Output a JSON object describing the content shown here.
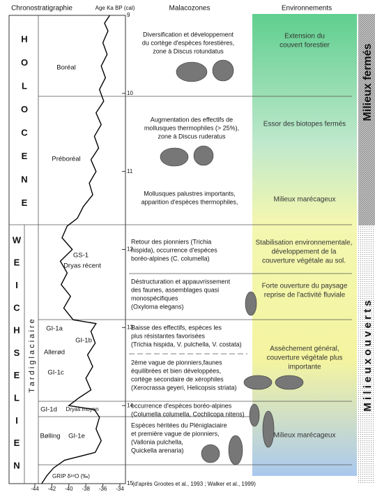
{
  "headers": [
    "Chronostratigraphie",
    "Malacozones",
    "Environnements"
  ],
  "age_axis": {
    "label": "Age Ka BP (cal)",
    "lim": [
      9,
      15
    ],
    "ticks": [
      9,
      10,
      11,
      12,
      13,
      14,
      15
    ]
  },
  "d18o_axis": {
    "label": "GRIP δ¹⁸O (‰)",
    "lim": [
      -44,
      -34
    ],
    "ticks": [
      -44,
      -42,
      -40,
      -38,
      -36,
      -34
    ]
  },
  "grip_curve": {
    "age": [
      9.0,
      9.1,
      9.2,
      9.35,
      9.5,
      9.65,
      9.8,
      9.95,
      10.1,
      10.25,
      10.4,
      10.55,
      10.7,
      10.85,
      11.0,
      11.15,
      11.3,
      11.45,
      11.6,
      11.7,
      11.85,
      12.0,
      12.15,
      12.3,
      12.45,
      12.6,
      12.75,
      12.9,
      12.95,
      13.05,
      13.2,
      13.35,
      13.5,
      13.65,
      13.8,
      13.9,
      14.0,
      14.05,
      14.15,
      14.3,
      14.45,
      14.6,
      14.7,
      14.8,
      14.9,
      15.0
    ],
    "d18o": [
      -35.2,
      -35.8,
      -35.4,
      -36.0,
      -35.5,
      -36.2,
      -35.7,
      -36.4,
      -35.9,
      -36.8,
      -36.2,
      -37.0,
      -36.5,
      -37.4,
      -36.8,
      -37.6,
      -37.2,
      -38.3,
      -39.0,
      -40.2,
      -40.8,
      -39.6,
      -41.0,
      -40.2,
      -40.9,
      -39.8,
      -40.6,
      -39.5,
      -36.8,
      -37.4,
      -36.9,
      -37.8,
      -37.2,
      -38.0,
      -37.4,
      -38.8,
      -40.0,
      -37.0,
      -36.4,
      -36.8,
      -36.2,
      -36.9,
      -40.5,
      -41.8,
      -42.6,
      -43.2
    ]
  },
  "holocene": {
    "letters": [
      "H",
      "O",
      "L",
      "O",
      "C",
      "E",
      "N",
      "E"
    ],
    "stages": [
      "Boréal",
      "Préboréal"
    ]
  },
  "weichselien": {
    "letters": [
      "W",
      "E",
      "I",
      "C",
      "H",
      "S",
      "E",
      "L",
      "I",
      "E",
      "N"
    ],
    "substage": "T a r d i g l a c i a i r e",
    "stages": [
      "GS-1",
      "Dryas récent",
      "GI-1a",
      "GI-1b",
      "Allerød",
      "GI-1c",
      "GI-1d",
      "Dryas moyen",
      "Bølling",
      "GI-1e"
    ]
  },
  "malacozones": [
    [
      "Diversification et développement",
      "du cortège d'espèces forestières,",
      "zone à Discus rotundatus"
    ],
    [
      "Augmentation des effectifs de",
      "mollusques thermophiles (> 25%),",
      "zone à Discus ruderatus"
    ],
    [
      "Mollusques palustres importants,",
      "apparition d'espèces thermophiles,"
    ],
    [
      "Retour des pionniers (Trichia",
      "hispida), occurrence d'espèces",
      "boréo-alpines (C. columella)"
    ],
    [
      "Déstructuration et appauvrissement",
      "des faunes, assemblages quasi",
      "monospécifiques",
      "(Oxyloma elegans)"
    ],
    [
      "Baisse des effectifs, espèces les",
      "plus résistantes favorisées",
      "(Trichia hispida, V. pulchella, V. costata)"
    ],
    [
      "2ème vague de pionniers,faunes",
      "équilibrées et bien développées,",
      "cortège secondaire de xérophiles",
      "(Xerocrassa geyeri, Helicopsis striata)"
    ],
    [
      "occurrence d'espèces boréo-alpines",
      "(Columella columella, Cochlicopa nitens)"
    ],
    [
      "Espèces héritées du Pléniglaciaire",
      "et première vague de pionniers,",
      "(Vallonia pulchella,",
      "Quickella arenaria)"
    ]
  ],
  "environments": [
    [
      "Extension du",
      "couvert forestier"
    ],
    [
      "Essor des biotopes fermés"
    ],
    [
      "Milieux marécageux"
    ],
    [
      "Stabilisation environnementale,",
      "développement de la",
      "couverture végétale au sol."
    ],
    [
      "Forte ouverture du paysage",
      "reprise de l'activité fluviale"
    ],
    [
      "Assèchement général,",
      "couverture végétale plus",
      "importante"
    ],
    [
      "Milieux marécageux"
    ]
  ],
  "milieux": [
    "Milieux fermés",
    "M i l i e u x   o u v e r t s"
  ],
  "source": "(d'après Grootes et al., 1993 ; Walker et al., 1999)"
}
